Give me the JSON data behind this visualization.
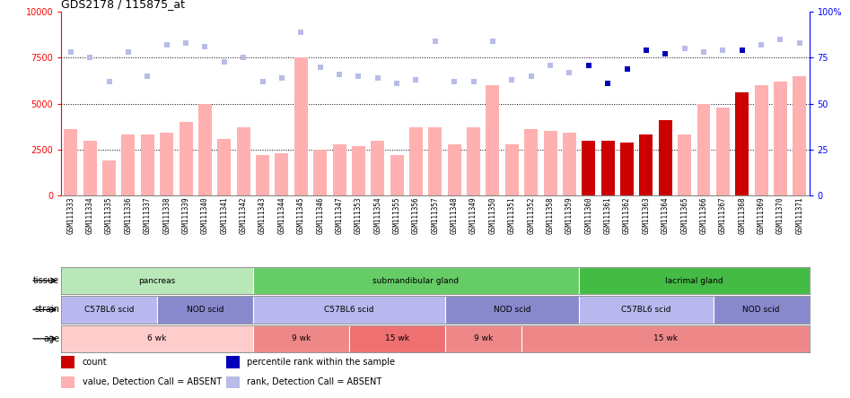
{
  "title": "GDS2178 / 115875_at",
  "gsm_labels": [
    "GSM111333",
    "GSM111334",
    "GSM111335",
    "GSM111336",
    "GSM111337",
    "GSM111338",
    "GSM111339",
    "GSM111340",
    "GSM111341",
    "GSM111342",
    "GSM111343",
    "GSM111344",
    "GSM111345",
    "GSM111346",
    "GSM111347",
    "GSM111353",
    "GSM111354",
    "GSM111355",
    "GSM111356",
    "GSM111357",
    "GSM111348",
    "GSM111349",
    "GSM111350",
    "GSM111351",
    "GSM111352",
    "GSM111358",
    "GSM111359",
    "GSM111360",
    "GSM111361",
    "GSM111362",
    "GSM111363",
    "GSM111364",
    "GSM111365",
    "GSM111366",
    "GSM111367",
    "GSM111368",
    "GSM111369",
    "GSM111370",
    "GSM111371"
  ],
  "bar_values": [
    3600,
    3000,
    1900,
    3300,
    3300,
    3400,
    4000,
    5000,
    3100,
    3700,
    2200,
    2300,
    7500,
    2500,
    2800,
    2700,
    3000,
    2200,
    3700,
    3700,
    2800,
    3700,
    6000,
    2800,
    3600,
    3500,
    3400,
    3000,
    3000,
    2900,
    3300,
    4100,
    3300,
    5000,
    4800,
    5600,
    6000,
    6200,
    6500
  ],
  "bar_colors": [
    "#ffb0b0",
    "#ffb0b0",
    "#ffb0b0",
    "#ffb0b0",
    "#ffb0b0",
    "#ffb0b0",
    "#ffb0b0",
    "#ffb0b0",
    "#ffb0b0",
    "#ffb0b0",
    "#ffb0b0",
    "#ffb0b0",
    "#ffb0b0",
    "#ffb0b0",
    "#ffb0b0",
    "#ffb0b0",
    "#ffb0b0",
    "#ffb0b0",
    "#ffb0b0",
    "#ffb0b0",
    "#ffb0b0",
    "#ffb0b0",
    "#ffb0b0",
    "#ffb0b0",
    "#ffb0b0",
    "#ffb0b0",
    "#ffb0b0",
    "#cc0000",
    "#cc0000",
    "#cc0000",
    "#cc0000",
    "#cc0000",
    "#ffb0b0",
    "#ffb0b0",
    "#ffb0b0",
    "#cc0000",
    "#ffb0b0",
    "#ffb0b0",
    "#ffb0b0"
  ],
  "rank_values": [
    78,
    75,
    62,
    78,
    65,
    82,
    83,
    81,
    73,
    75,
    62,
    64,
    89,
    70,
    66,
    65,
    64,
    61,
    63,
    84,
    62,
    62,
    84,
    63,
    65,
    71,
    67,
    71,
    61,
    69,
    79,
    77,
    80,
    78,
    79,
    79,
    82,
    85,
    83
  ],
  "rank_colors": [
    "#b8bce8",
    "#b8bce8",
    "#b8bce8",
    "#b8bce8",
    "#b8bce8",
    "#b8bce8",
    "#b8bce8",
    "#b8bce8",
    "#b8bce8",
    "#b8bce8",
    "#b8bce8",
    "#b8bce8",
    "#b8bce8",
    "#b8bce8",
    "#b8bce8",
    "#b8bce8",
    "#b8bce8",
    "#b8bce8",
    "#b8bce8",
    "#b8bce8",
    "#b8bce8",
    "#b8bce8",
    "#b8bce8",
    "#b8bce8",
    "#b8bce8",
    "#b8bce8",
    "#b8bce8",
    "#0000bb",
    "#0000bb",
    "#0000bb",
    "#0000bb",
    "#0000bb",
    "#b8bce8",
    "#b8bce8",
    "#b8bce8",
    "#0000bb",
    "#b8bce8",
    "#b8bce8",
    "#b8bce8"
  ],
  "tissue_groups": [
    {
      "label": "pancreas",
      "start": 0,
      "end": 10,
      "color": "#b8e8b8"
    },
    {
      "label": "submandibular gland",
      "start": 10,
      "end": 27,
      "color": "#66cc66"
    },
    {
      "label": "lacrimal gland",
      "start": 27,
      "end": 39,
      "color": "#44bb44"
    }
  ],
  "strain_groups": [
    {
      "label": "C57BL6 scid",
      "start": 0,
      "end": 5,
      "color": "#b8b8ee"
    },
    {
      "label": "NOD scid",
      "start": 5,
      "end": 10,
      "color": "#8888cc"
    },
    {
      "label": "C57BL6 scid",
      "start": 10,
      "end": 20,
      "color": "#b8b8ee"
    },
    {
      "label": "NOD scid",
      "start": 20,
      "end": 27,
      "color": "#8888cc"
    },
    {
      "label": "C57BL6 scid",
      "start": 27,
      "end": 34,
      "color": "#b8b8ee"
    },
    {
      "label": "NOD scid",
      "start": 34,
      "end": 39,
      "color": "#8888cc"
    }
  ],
  "age_groups": [
    {
      "label": "6 wk",
      "start": 0,
      "end": 10,
      "color": "#ffcccc"
    },
    {
      "label": "9 wk",
      "start": 10,
      "end": 15,
      "color": "#ee8888"
    },
    {
      "label": "15 wk",
      "start": 15,
      "end": 20,
      "color": "#ee7070"
    },
    {
      "label": "9 wk",
      "start": 20,
      "end": 24,
      "color": "#ee8888"
    },
    {
      "label": "15 wk",
      "start": 24,
      "end": 39,
      "color": "#ee8888"
    }
  ],
  "yticks_left": [
    0,
    2500,
    5000,
    7500,
    10000
  ],
  "yticks_right": [
    0,
    25,
    50,
    75,
    100
  ],
  "legend_items": [
    {
      "label": "count",
      "color": "#cc0000"
    },
    {
      "label": "percentile rank within the sample",
      "color": "#0000bb"
    },
    {
      "label": "value, Detection Call = ABSENT",
      "color": "#ffb0b0"
    },
    {
      "label": "rank, Detection Call = ABSENT",
      "color": "#b8bce8"
    }
  ]
}
